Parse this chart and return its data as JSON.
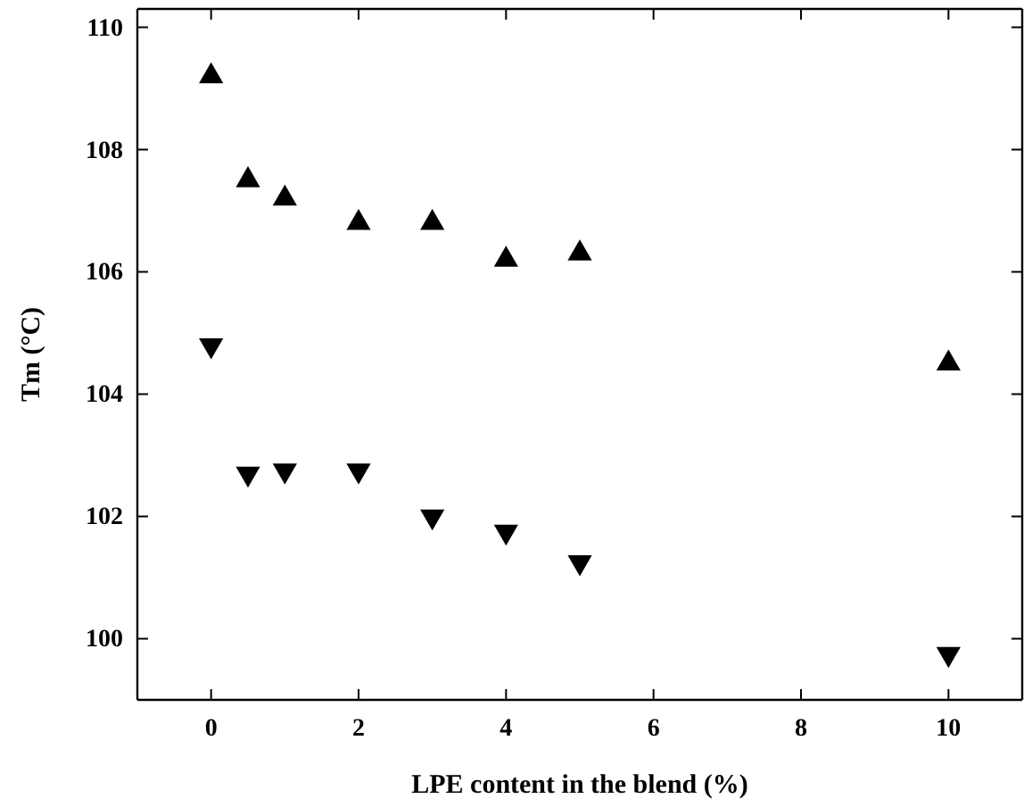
{
  "chart_data": {
    "type": "scatter",
    "xlabel": "LPE content in the blend (%)",
    "ylabel": "Tm (°C)",
    "x": [
      0,
      0.5,
      1,
      2,
      3,
      4,
      5,
      10
    ],
    "xlim": [
      -1,
      11
    ],
    "xticks": [
      0,
      2,
      4,
      6,
      8,
      10
    ],
    "ylim": [
      99,
      110.3
    ],
    "yticks": [
      100,
      102,
      104,
      106,
      108,
      110
    ],
    "grid": false,
    "series": [
      {
        "color": "#000000",
        "marker": "triangle",
        "values": [
          109.2,
          107.5,
          107.2,
          106.8,
          106.8,
          106.2,
          106.3,
          104.5
        ]
      },
      {
        "color": "#000000",
        "marker": "triangle-down",
        "values": [
          104.8,
          102.7,
          102.75,
          102.75,
          102.0,
          101.75,
          101.25,
          99.75
        ]
      }
    ]
  }
}
